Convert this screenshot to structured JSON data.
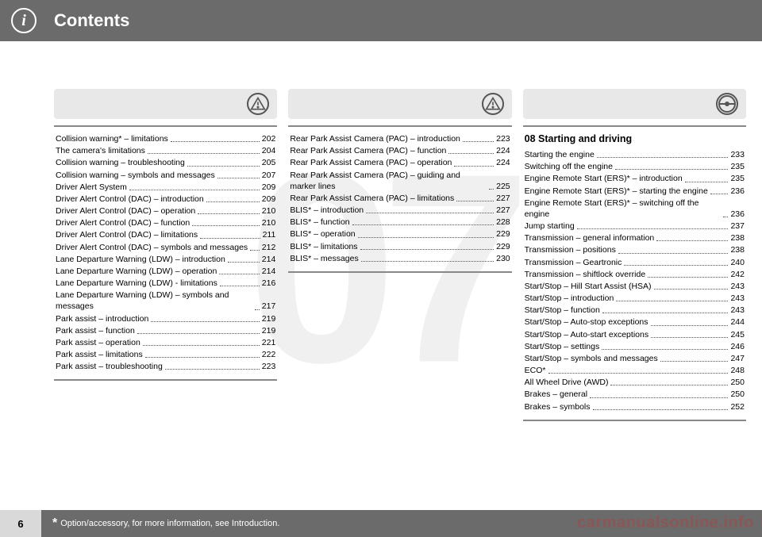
{
  "header": {
    "title": "Contents"
  },
  "watermark": "07",
  "page_number": "6",
  "footnote": "Option/accessory, for more information, see Introduction.",
  "brand_watermark": "carmanualsonline.info",
  "columns": [
    {
      "icon": "warning-triangle",
      "title": null,
      "items": [
        {
          "label": "Collision warning* – limitations",
          "page": "202"
        },
        {
          "label": "The camera's limitations",
          "page": "204"
        },
        {
          "label": "Collision warning – troubleshooting",
          "page": "205"
        },
        {
          "label": "Collision warning – symbols and messages",
          "page": "207"
        },
        {
          "label": "Driver Alert System",
          "page": "209"
        },
        {
          "label": "Driver Alert Control (DAC) – introduction",
          "page": "209"
        },
        {
          "label": "Driver Alert Control (DAC) – operation",
          "page": "210"
        },
        {
          "label": "Driver Alert Control (DAC) – function",
          "page": "210"
        },
        {
          "label": "Driver Alert Control (DAC) – limitations",
          "page": "211"
        },
        {
          "label": "Driver Alert Control (DAC) – symbols and messages",
          "page": "212"
        },
        {
          "label": "Lane Departure Warning (LDW) – introduction",
          "page": "214"
        },
        {
          "label": "Lane Departure Warning (LDW) – operation",
          "page": "214"
        },
        {
          "label": "Lane Departure Warning (LDW) - limitations",
          "page": "216"
        },
        {
          "label": "Lane Departure Warning (LDW) – symbols and messages",
          "page": "217"
        },
        {
          "label": "Park assist – introduction",
          "page": "219"
        },
        {
          "label": "Park assist – function",
          "page": "219"
        },
        {
          "label": "Park assist – operation",
          "page": "221"
        },
        {
          "label": "Park assist – limitations",
          "page": "222"
        },
        {
          "label": "Park assist – troubleshooting",
          "page": "223"
        }
      ]
    },
    {
      "icon": "warning-triangle",
      "title": null,
      "items": [
        {
          "label": "Rear Park Assist Camera (PAC) – introduction",
          "page": "223"
        },
        {
          "label": "Rear Park Assist Camera (PAC) – function",
          "page": "224"
        },
        {
          "label": "Rear Park Assist Camera (PAC) – operation",
          "page": "224"
        },
        {
          "label": "Rear Park Assist Camera (PAC) – guiding and marker lines",
          "page": "225"
        },
        {
          "label": "Rear Park Assist Camera (PAC) – limitations",
          "page": "227"
        },
        {
          "label": "BLIS* – introduction",
          "page": "227"
        },
        {
          "label": "BLIS* – function",
          "page": "228"
        },
        {
          "label": "BLIS* – operation",
          "page": "229"
        },
        {
          "label": "BLIS* – limitations",
          "page": "229"
        },
        {
          "label": "BLIS* – messages",
          "page": "230"
        }
      ]
    },
    {
      "icon": "steering-wheel",
      "title": "08 Starting and driving",
      "items": [
        {
          "label": "Starting the engine",
          "page": "233"
        },
        {
          "label": "Switching off the engine",
          "page": "235"
        },
        {
          "label": "Engine Remote Start (ERS)* – introduction",
          "page": "235"
        },
        {
          "label": "Engine Remote Start (ERS)* – starting the engine",
          "page": "236"
        },
        {
          "label": "Engine Remote Start (ERS)* – switching off the engine",
          "page": "236"
        },
        {
          "label": "Jump starting",
          "page": "237"
        },
        {
          "label": "Transmission – general information",
          "page": "238"
        },
        {
          "label": "Transmission – positions",
          "page": "238"
        },
        {
          "label": "Transmission – Geartronic",
          "page": "240"
        },
        {
          "label": "Transmission – shiftlock override",
          "page": "242"
        },
        {
          "label": "Start/Stop – Hill Start Assist (HSA)",
          "page": "243"
        },
        {
          "label": "Start/Stop – introduction",
          "page": "243"
        },
        {
          "label": "Start/Stop – function",
          "page": "243"
        },
        {
          "label": "Start/Stop – Auto-stop exceptions",
          "page": "244"
        },
        {
          "label": "Start/Stop – Auto-start exceptions",
          "page": "245"
        },
        {
          "label": "Start/Stop – settings",
          "page": "246"
        },
        {
          "label": "Start/Stop – symbols and messages",
          "page": "247"
        },
        {
          "label": "ECO*",
          "page": "248"
        },
        {
          "label": "All Wheel Drive (AWD)",
          "page": "250"
        },
        {
          "label": "Brakes – general",
          "page": "250"
        },
        {
          "label": "Brakes – symbols",
          "page": "252"
        }
      ]
    }
  ]
}
